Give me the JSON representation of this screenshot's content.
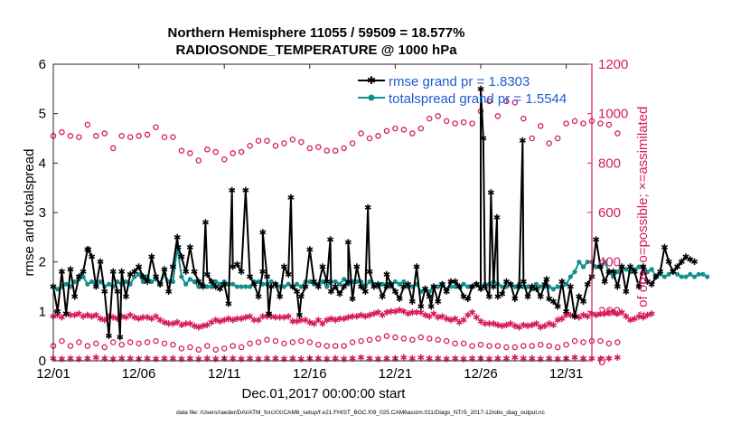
{
  "colors": {
    "rmse": "#000000",
    "totalspread": "#148f8f",
    "obs": "#d41a5e",
    "legend_text": "#1f5bd6"
  },
  "chart_data": {
    "type": "line",
    "title": "Northern Hemisphere 11055 / 59509 = 18.577%",
    "subtitle": "RADIOSONDE_TEMPERATURE @ 1000 hPa",
    "xlabel": "Dec.01,2017 00:00:00 start",
    "ylabel_left": "rmse and totalspread",
    "ylabel_right": "# of obs: o=possible; ×=assimilated",
    "xlim": [
      0,
      31.5
    ],
    "ylim_left": [
      0,
      6
    ],
    "ylim_right": [
      0,
      1200
    ],
    "xticks": [
      {
        "pos": 0,
        "label": "12/01"
      },
      {
        "pos": 5,
        "label": "12/06"
      },
      {
        "pos": 10,
        "label": "12/11"
      },
      {
        "pos": 15,
        "label": "12/16"
      },
      {
        "pos": 20,
        "label": "12/21"
      },
      {
        "pos": 25,
        "label": "12/26"
      },
      {
        "pos": 30,
        "label": "12/31"
      }
    ],
    "yticks_left": [
      "0",
      "1",
      "2",
      "3",
      "4",
      "5",
      "6"
    ],
    "yticks_right": [
      "0",
      "200",
      "400",
      "600",
      "800",
      "1000",
      "1200"
    ],
    "legend": {
      "location": "top-right",
      "entries": [
        "rmse grand pr = 1.8303",
        "totalspread grand pr = 1.5544"
      ]
    },
    "series": [
      {
        "name": "rmse",
        "axis": "left",
        "start_day": 0,
        "step_days": 0.25,
        "values": [
          1.5,
          1.0,
          1.8,
          0.95,
          1.85,
          1.3,
          1.7,
          1.8,
          2.25,
          2.1,
          1.5,
          2.0,
          1.4,
          0.5,
          1.8,
          1.4,
          1.8,
          1.3,
          1.75,
          1.8,
          1.9,
          1.7,
          1.6,
          2.1,
          1.7,
          1.55,
          1.85,
          1.4,
          1.9,
          2.5,
          2.1,
          1.8,
          2.3,
          1.8,
          1.6,
          1.5,
          1.75,
          1.6,
          1.5,
          1.45,
          1.55,
          1.15,
          1.9,
          1.95,
          1.8,
          3.45,
          1.7,
          1.55,
          1.3,
          1.8,
          1.7,
          1.5,
          1.55,
          1.3,
          1.9,
          1.75,
          1.5,
          1.4,
          1.3,
          1.5,
          2.25,
          1.6,
          1.5,
          1.9,
          1.6,
          1.4,
          1.5,
          1.35,
          1.5,
          1.6,
          1.25,
          1.9,
          1.5,
          1.4,
          1.8,
          1.5,
          1.55,
          1.3,
          1.5,
          1.55,
          1.4,
          1.25,
          1.5,
          1.55,
          1.2,
          1.9,
          1.1,
          1.45,
          1.3,
          1.5,
          1.2,
          1.55,
          1.4,
          1.6,
          1.6,
          1.5,
          1.3,
          1.25,
          1.5,
          1.55,
          1.45,
          1.5,
          1.3,
          1.5,
          1.3,
          1.35,
          1.6,
          1.55,
          1.25,
          1.5,
          1.6,
          1.3,
          1.5,
          1.45,
          1.3,
          1.55,
          1.25,
          1.2,
          1.1,
          1.6,
          1.0,
          1.5,
          0.9,
          1.3,
          1.2,
          1.55,
          1.7,
          2.45,
          1.9,
          1.6,
          1.8,
          1.8,
          1.5,
          1.9,
          1.4,
          1.9,
          1.8,
          1.5,
          1.9,
          1.6,
          1.55,
          1.7,
          1.8,
          2.3,
          2.0,
          1.8,
          1.9,
          2.0,
          2.1,
          2.05,
          2.0
        ],
        "spikes": [
          {
            "day": 2.05,
            "value": 2.25
          },
          {
            "day": 3.9,
            "value": 0.48
          },
          {
            "day": 7.3,
            "value": 2.3
          },
          {
            "day": 8.9,
            "value": 2.8
          },
          {
            "day": 10.45,
            "value": 3.45
          },
          {
            "day": 12.25,
            "value": 2.6
          },
          {
            "day": 12.6,
            "value": 0.95
          },
          {
            "day": 13.9,
            "value": 3.3
          },
          {
            "day": 14.4,
            "value": 0.92
          },
          {
            "day": 16.2,
            "value": 2.45
          },
          {
            "day": 17.25,
            "value": 2.4
          },
          {
            "day": 18.4,
            "value": 3.1
          },
          {
            "day": 19.5,
            "value": 1.75
          },
          {
            "day": 22.1,
            "value": 1.1
          },
          {
            "day": 25.0,
            "value": 5.5
          },
          {
            "day": 25.15,
            "value": 4.5
          },
          {
            "day": 25.6,
            "value": 3.4
          },
          {
            "day": 25.95,
            "value": 2.9
          },
          {
            "day": 27.45,
            "value": 4.45
          },
          {
            "day": 28.85,
            "value": 1.65
          }
        ]
      },
      {
        "name": "totalspread",
        "axis": "left",
        "start_day": 0,
        "step_days": 0.25,
        "values": [
          1.5,
          1.45,
          1.5,
          1.55,
          1.5,
          1.6,
          1.65,
          1.7,
          1.55,
          1.6,
          1.55,
          1.6,
          1.5,
          1.55,
          1.5,
          1.6,
          1.55,
          1.6,
          1.55,
          1.7,
          1.75,
          1.6,
          1.7,
          1.6,
          1.65,
          1.55,
          1.75,
          1.6,
          1.6,
          2.3,
          1.7,
          1.55,
          1.65,
          1.6,
          1.5,
          1.55,
          1.5,
          1.5,
          1.6,
          1.55,
          1.6,
          1.55,
          1.55,
          1.5,
          1.5,
          1.5,
          1.5,
          1.6,
          1.6,
          1.55,
          1.55,
          1.6,
          1.55,
          1.5,
          1.5,
          1.55,
          1.5,
          1.55,
          1.5,
          1.6,
          1.6,
          1.55,
          1.55,
          1.6,
          1.5,
          1.6,
          1.6,
          1.55,
          1.65,
          1.55,
          1.6,
          1.6,
          1.6,
          1.5,
          1.6,
          1.55,
          1.5,
          1.55,
          1.55,
          1.5,
          1.6,
          1.55,
          1.6,
          1.5,
          1.5,
          1.55,
          1.4,
          1.45,
          1.4,
          1.5,
          1.5,
          1.55,
          1.45,
          1.5,
          1.5,
          1.5,
          1.55,
          1.5,
          1.5,
          1.55,
          1.5,
          1.55,
          1.55,
          1.6,
          1.55,
          1.5,
          1.5,
          1.55,
          1.5,
          1.55,
          1.5,
          1.5,
          1.45,
          1.55,
          1.5,
          1.5,
          1.5,
          1.45,
          1.5,
          1.5,
          1.55,
          1.7,
          1.8,
          2.0,
          1.9,
          2.0,
          2.0,
          1.9,
          1.9,
          2.0,
          1.8,
          1.7,
          1.8,
          1.9,
          1.85,
          1.8,
          1.85,
          1.9,
          1.9,
          1.8,
          1.85,
          1.7,
          1.75,
          1.7,
          1.75,
          1.8,
          1.75,
          1.7,
          1.7,
          1.75,
          1.7,
          1.75,
          1.75,
          1.7
        ]
      },
      {
        "name": "obs_possible",
        "axis": "right",
        "marker": "circle",
        "upper_start_day": 0.0,
        "upper_step_days": 0.5,
        "upper_values": [
          910,
          925,
          910,
          905,
          955,
          910,
          920,
          860,
          910,
          905,
          910,
          915,
          945,
          905,
          905,
          850,
          840,
          810,
          855,
          845,
          815,
          840,
          845,
          870,
          890,
          890,
          870,
          880,
          895,
          885,
          860,
          865,
          850,
          850,
          860,
          880,
          920,
          900,
          910,
          930,
          940,
          935,
          920,
          940,
          980,
          990,
          970,
          960,
          965,
          960,
          1010,
          1050,
          990,
          1050,
          1045,
          980,
          900,
          950,
          880,
          900,
          960,
          970,
          960,
          970,
          960,
          955,
          920
        ],
        "lower_start_day": 0.0,
        "lower_step_days": 0.5,
        "lower_values": [
          60,
          80,
          60,
          75,
          60,
          70,
          55,
          75,
          65,
          75,
          70,
          75,
          80,
          70,
          65,
          50,
          55,
          45,
          60,
          45,
          50,
          60,
          55,
          70,
          75,
          85,
          80,
          70,
          75,
          80,
          75,
          65,
          60,
          60,
          60,
          75,
          80,
          85,
          90,
          100,
          95,
          90,
          85,
          95,
          90,
          85,
          80,
          70,
          70,
          60,
          65,
          60,
          60,
          55,
          55,
          60,
          60,
          65,
          60,
          55,
          65,
          80,
          75,
          80,
          80,
          70,
          75
        ]
      },
      {
        "name": "obs_assimilated",
        "axis": "right",
        "marker": "star",
        "upper_start_day": 0.0,
        "upper_step_days": 0.25,
        "upper_values": [
          180,
          185,
          175,
          190,
          185,
          185,
          190,
          180,
          185,
          180,
          185,
          170,
          165,
          180,
          175,
          170,
          180,
          175,
          185,
          175,
          170,
          175,
          175,
          170,
          180,
          165,
          155,
          150,
          150,
          155,
          145,
          150,
          150,
          140,
          135,
          140,
          145,
          155,
          165,
          160,
          165,
          170,
          165,
          170,
          170,
          175,
          180,
          165,
          165,
          180,
          180,
          180,
          175,
          175,
          175,
          180,
          160,
          160,
          165,
          165,
          155,
          150,
          165,
          150,
          165,
          170,
          165,
          170,
          170,
          175,
          180,
          180,
          185,
          180,
          185,
          190,
          195,
          185,
          195,
          200,
          200,
          205,
          200,
          190,
          195,
          195,
          195,
          185,
          180,
          190,
          175,
          180,
          170,
          165,
          170,
          155,
          165,
          185,
          195,
          175,
          160,
          150,
          150,
          150,
          145,
          140,
          145,
          150,
          140,
          135,
          145,
          140,
          145,
          150,
          135,
          140,
          150,
          145,
          165,
          170,
          185,
          185,
          180,
          175,
          185,
          180,
          190,
          185,
          190,
          190,
          195,
          195,
          190,
          195,
          180,
          165,
          170,
          180,
          175,
          185,
          190
        ],
        "lower_start_day": 0.0,
        "lower_step_days": 0.5,
        "lower_values": [
          10,
          8,
          10,
          8,
          10,
          12,
          10,
          8,
          10,
          10,
          8,
          10,
          8,
          10,
          10,
          8,
          10,
          8,
          10,
          8,
          10,
          10,
          8,
          10,
          8,
          10,
          10,
          8,
          10,
          8,
          10,
          10,
          8,
          10,
          8,
          10,
          12,
          10,
          8,
          10,
          10,
          12,
          10,
          12,
          10,
          10,
          8,
          10,
          8,
          10,
          10,
          8,
          10,
          10,
          12,
          10,
          10,
          8,
          10,
          8,
          10,
          12,
          10,
          10,
          8,
          10,
          12
        ]
      }
    ]
  },
  "footer": {
    "datafile": "data file: /Users/raeder/DAI/ATM_forcXX/CAM6_setup/f.e21.FHIST_BGC.f09_025.CAM6assim.011/Diags_NTrS_2017-12/obs_diag_output.nc"
  }
}
